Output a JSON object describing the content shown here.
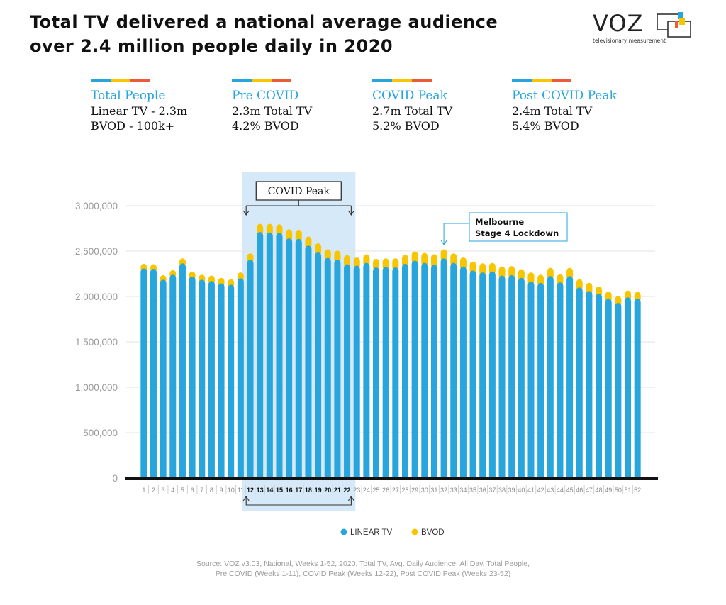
{
  "title": {
    "line1": "Total TV delivered a national average audience",
    "line2": "over 2.4 million people daily in 2020"
  },
  "logo": {
    "word": "VOZ",
    "tagline": "televisionary measurement"
  },
  "colors": {
    "linear": "#27a5dc",
    "bvod": "#f7c600",
    "accent_red": "#ec5a3c",
    "highlight": "#d6e9f8"
  },
  "stats": [
    {
      "heading": "Total People",
      "line1": "Linear TV - 2.3m",
      "line2": "BVOD - 100k+"
    },
    {
      "heading": "Pre COVID",
      "line1": "2.3m Total TV",
      "line2": "4.2% BVOD"
    },
    {
      "heading": "COVID Peak",
      "line1": "2.7m Total TV",
      "line2": "5.2% BVOD"
    },
    {
      "heading": "Post COVID Peak",
      "line1": "2.4m Total TV",
      "line2": "5.4% BVOD"
    }
  ],
  "chart_data": {
    "type": "bar",
    "stacked": true,
    "categories": [
      "1",
      "2",
      "3",
      "4",
      "5",
      "6",
      "7",
      "8",
      "9",
      "10",
      "11",
      "12",
      "13",
      "14",
      "15",
      "16",
      "17",
      "18",
      "19",
      "20",
      "21",
      "22",
      "23",
      "24",
      "25",
      "26",
      "27",
      "28",
      "29",
      "30",
      "31",
      "32",
      "33",
      "34",
      "35",
      "36",
      "37",
      "38",
      "39",
      "40",
      "41",
      "42",
      "43",
      "44",
      "45",
      "46",
      "47",
      "48",
      "49",
      "50",
      "51",
      "52"
    ],
    "series": [
      {
        "name": "LINEAR TV",
        "values": [
          2310000,
          2305000,
          2185000,
          2240000,
          2365000,
          2220000,
          2185000,
          2170000,
          2145000,
          2130000,
          2200000,
          2405000,
          2710000,
          2705000,
          2700000,
          2640000,
          2635000,
          2560000,
          2485000,
          2425000,
          2405000,
          2355000,
          2340000,
          2370000,
          2320000,
          2325000,
          2320000,
          2360000,
          2395000,
          2370000,
          2350000,
          2420000,
          2370000,
          2330000,
          2285000,
          2265000,
          2275000,
          2230000,
          2235000,
          2205000,
          2165000,
          2150000,
          2225000,
          2155000,
          2225000,
          2100000,
          2060000,
          2030000,
          1975000,
          1930000,
          1990000,
          1975000
        ]
      },
      {
        "name": "BVOD",
        "values": [
          50000,
          50000,
          50000,
          50000,
          55000,
          55000,
          55000,
          60000,
          60000,
          60000,
          65000,
          70000,
          90000,
          95000,
          95000,
          100000,
          100000,
          100000,
          100000,
          95000,
          100000,
          100000,
          90000,
          95000,
          95000,
          95000,
          100000,
          100000,
          100000,
          110000,
          115000,
          100000,
          105000,
          100000,
          100000,
          100000,
          95000,
          100000,
          100000,
          95000,
          100000,
          90000,
          90000,
          90000,
          90000,
          90000,
          90000,
          80000,
          80000,
          75000,
          75000,
          75000
        ]
      }
    ],
    "ylim": [
      0,
      3000000
    ],
    "yticks": [
      "0",
      "500,000",
      "1,000,000",
      "1,500,000",
      "2,000,000",
      "2,500,000",
      "3,000,000"
    ],
    "grid": true,
    "legend": "bottom-center",
    "highlight": {
      "label": "COVID Peak",
      "from_week": "12",
      "to_week": "22"
    },
    "annotation": {
      "line1": "Melbourne",
      "line2": "Stage 4 Lockdown",
      "week": "32"
    }
  },
  "source": {
    "line1": "Source: VOZ v3.03, National, Weeks 1-52, 2020, Total TV, Avg. Daily Audience, All Day, Total People,",
    "line2": "Pre COVID (Weeks 1-11), COVID Peak (Weeks 12-22), Post COVID Peak (Weeks 23-52)"
  }
}
